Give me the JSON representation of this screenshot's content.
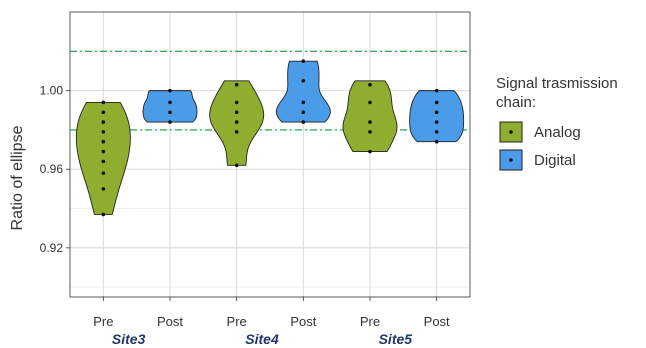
{
  "chart_data": {
    "type": "violin",
    "ylabel": "Ratio of ellipse",
    "ylim": [
      0.895,
      1.04
    ],
    "yticks": [
      0.92,
      0.96,
      1.0
    ],
    "ytick_labels": [
      "0.92",
      "0.96",
      "1.00"
    ],
    "grid": true,
    "categories": [
      "Pre",
      "Post",
      "Pre",
      "Post",
      "Pre",
      "Post"
    ],
    "site_labels": [
      "Site3",
      "Site4",
      "Site5"
    ],
    "reference_lines": [
      0.98,
      1.02
    ],
    "legend": {
      "title_lines": [
        "Signal trasmission",
        "chain:"
      ],
      "position": "right",
      "entries": [
        {
          "label": "Analog",
          "color": "#8fae2f"
        },
        {
          "label": "Digital",
          "color": "#4a9be8"
        }
      ]
    },
    "series": [
      {
        "site": "Site3",
        "group": "Pre",
        "chain": "Analog",
        "min": 0.937,
        "max": 0.994,
        "points": [
          0.994,
          0.989,
          0.984,
          0.979,
          0.974,
          0.969,
          0.964,
          0.958,
          0.95,
          0.937
        ]
      },
      {
        "site": "Site3",
        "group": "Post",
        "chain": "Digital",
        "min": 0.984,
        "max": 1.0,
        "points": [
          1.0,
          0.994,
          0.989,
          0.984
        ]
      },
      {
        "site": "Site4",
        "group": "Pre",
        "chain": "Analog",
        "min": 0.962,
        "max": 1.005,
        "points": [
          1.003,
          0.994,
          0.989,
          0.984,
          0.979,
          0.962
        ]
      },
      {
        "site": "Site4",
        "group": "Post",
        "chain": "Digital",
        "min": 0.984,
        "max": 1.015,
        "points": [
          1.015,
          1.005,
          0.994,
          0.989,
          0.984
        ]
      },
      {
        "site": "Site5",
        "group": "Pre",
        "chain": "Analog",
        "min": 0.969,
        "max": 1.005,
        "points": [
          1.003,
          0.994,
          0.984,
          0.979,
          0.969
        ]
      },
      {
        "site": "Site5",
        "group": "Post",
        "chain": "Digital",
        "min": 0.974,
        "max": 1.0,
        "points": [
          1.0,
          0.994,
          0.989,
          0.984,
          0.979,
          0.974
        ]
      }
    ]
  }
}
